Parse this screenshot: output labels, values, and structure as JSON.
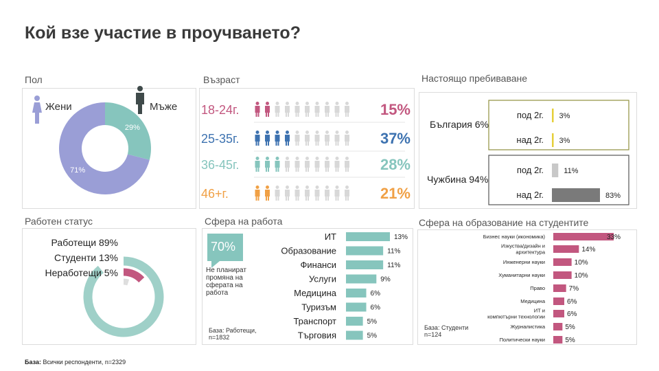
{
  "title": "Кой взе участие в проучването?",
  "footer": {
    "label": "База:",
    "text": "Всички респонденти,  n=2329"
  },
  "sections": {
    "gender": "Пол",
    "age": "Възраст",
    "residence": "Настоящо пребиваване",
    "work_status": "Работен статус",
    "work_field": "Сфера на работа",
    "edu_field": "Сфера на образование на студентите"
  },
  "colors": {
    "female": "#9a9ed6",
    "male": "#86c5bd",
    "pink": "#c2577f",
    "teal": "#86c5bd",
    "olive": "#8f8f3e"
  },
  "gender_labels": {
    "female": "Жени",
    "male": "Мъже",
    "female_icon": "female-person-icon",
    "male_icon": "male-person-icon"
  },
  "work_field_note": {
    "big": "70%",
    "text": "Не планират промяна на сферата на работа"
  },
  "work_field_base": "База: Работещи, n=1832",
  "edu_field_base": "База: Студенти n=124",
  "chart_data": [
    {
      "id": "gender",
      "type": "pie",
      "categories": [
        "Жени",
        "Мъже"
      ],
      "values": [
        71,
        29
      ],
      "labels": [
        "71%",
        "29%"
      ]
    },
    {
      "id": "age",
      "type": "bar",
      "categories": [
        "18-24г.",
        "25-35г.",
        "36-45г.",
        "46+г."
      ],
      "values": [
        15,
        37,
        28,
        21
      ],
      "labels": [
        "15%",
        "37%",
        "28%",
        "21%"
      ],
      "colors": [
        "#c2577f",
        "#3d72b0",
        "#86c5bd",
        "#f0a045"
      ],
      "icons_per_row": 10
    },
    {
      "id": "residence",
      "type": "bar",
      "groups": [
        {
          "name": "България 6%",
          "categories": [
            "под 2г.",
            "над 2г."
          ],
          "values": [
            3,
            3
          ],
          "labels": [
            "3%",
            "3%"
          ]
        },
        {
          "name": "Чужбина 94%",
          "categories": [
            "под 2г.",
            "над 2г."
          ],
          "values": [
            11,
            83
          ],
          "labels": [
            "11%",
            "83%"
          ]
        }
      ]
    },
    {
      "id": "work_status",
      "type": "pie",
      "categories": [
        "Работещи 89%",
        "Студенти 13%",
        "Неработещи 5%"
      ],
      "values": [
        89,
        13,
        5
      ]
    },
    {
      "id": "work_field",
      "type": "bar",
      "categories": [
        "ИТ",
        "Образование",
        "Финанси",
        "Услуги",
        "Медицина",
        "Туризъм",
        "Транспорт",
        "Търговия"
      ],
      "values": [
        13,
        11,
        11,
        9,
        6,
        6,
        5,
        5
      ],
      "labels": [
        "13%",
        "11%",
        "11%",
        "9%",
        "6%",
        "6%",
        "5%",
        "5%"
      ]
    },
    {
      "id": "edu_field",
      "type": "bar",
      "categories": [
        "Бизнес науки (икономика)",
        "Изкуства/дизайн и архитектура",
        "Инженерни науки",
        "Хуманитарни науки",
        "Право",
        "Медицина",
        "ИТ и компютърни технологии",
        "Журналистика",
        "Политически науки"
      ],
      "values": [
        33,
        14,
        10,
        10,
        7,
        6,
        6,
        5,
        5
      ],
      "labels": [
        "33%",
        "14%",
        "10%",
        "10%",
        "7%",
        "6%",
        "6%",
        "5%",
        "5%"
      ]
    }
  ]
}
